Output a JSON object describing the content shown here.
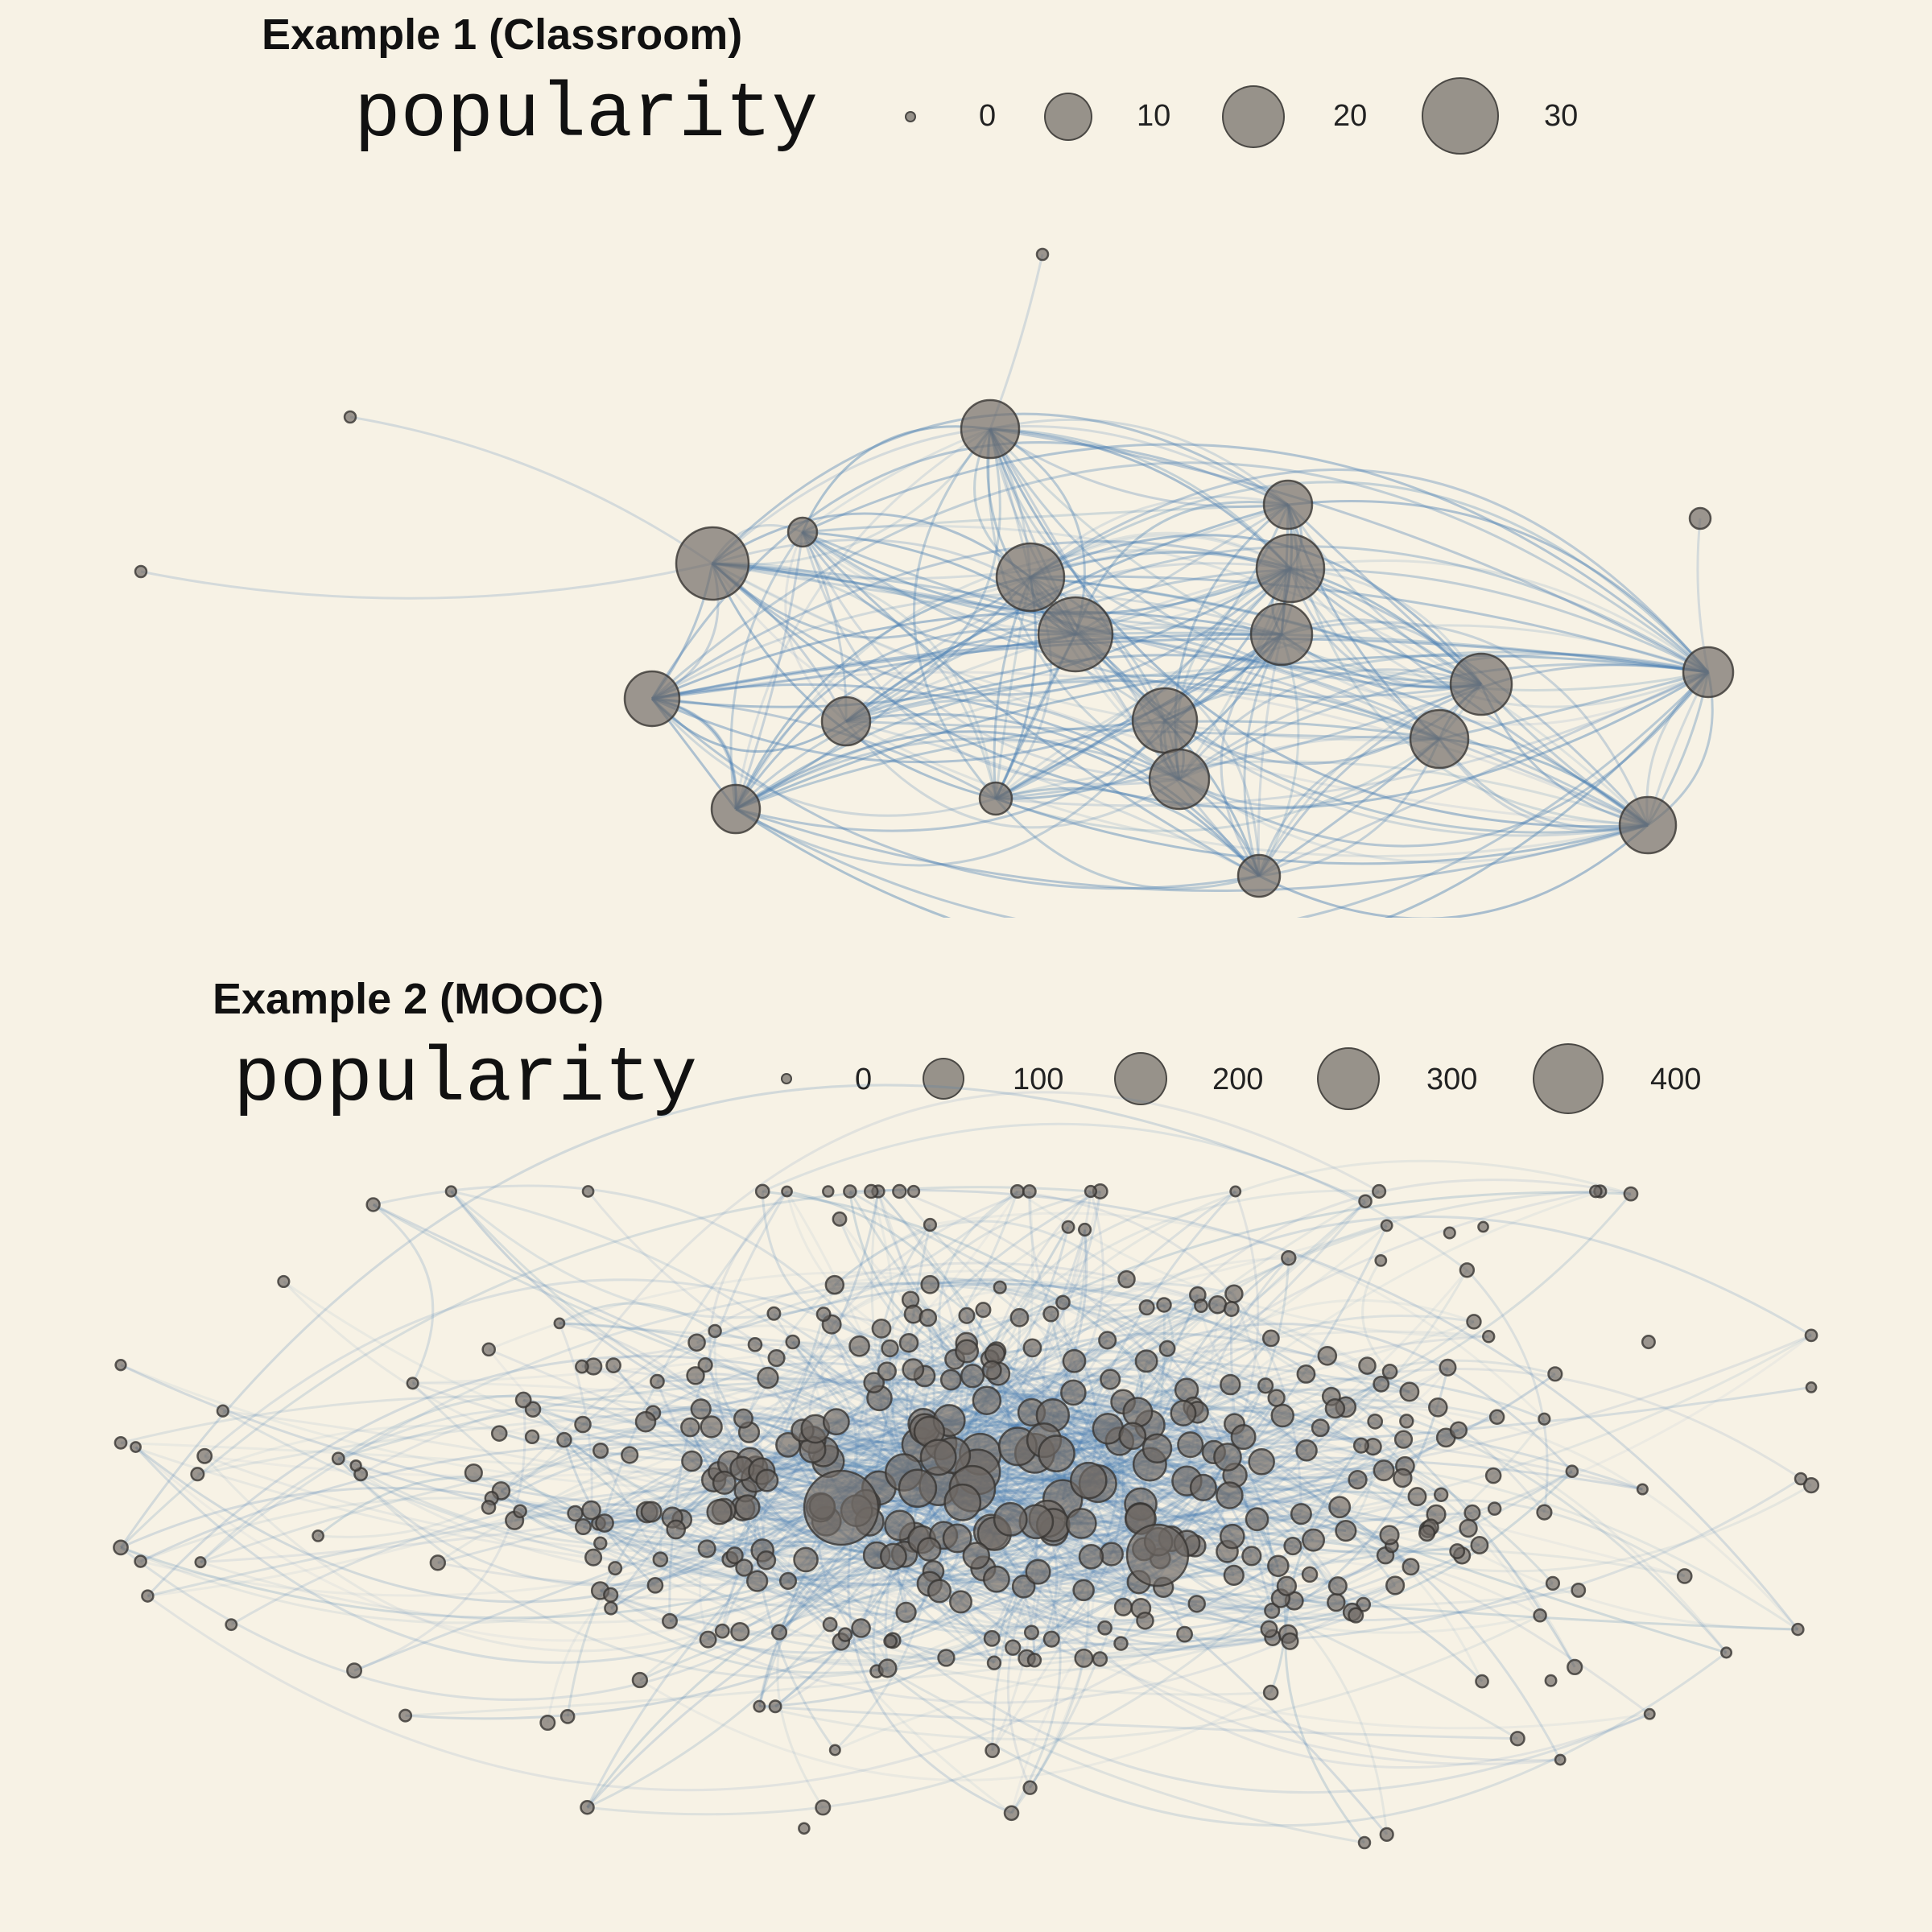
{
  "panels": [
    {
      "title": "Example 1 (Classroom)",
      "legend": {
        "title": "popularity",
        "keys": [
          {
            "label": "0"
          },
          {
            "label": "10"
          },
          {
            "label": "20"
          },
          {
            "label": "30"
          }
        ]
      }
    },
    {
      "title": "Example 2 (MOOC)",
      "legend": {
        "title": "popularity",
        "keys": [
          {
            "label": "0"
          },
          {
            "label": "100"
          },
          {
            "label": "200"
          },
          {
            "label": "300"
          },
          {
            "label": "400"
          }
        ]
      }
    }
  ],
  "colors": {
    "background": "#f7f2e5",
    "edge": "#4a7fb3",
    "node_fill": "#6e6964",
    "node_stroke": "#373432"
  },
  "graph_type": "network graph, curved edges, node size encodes popularity"
}
